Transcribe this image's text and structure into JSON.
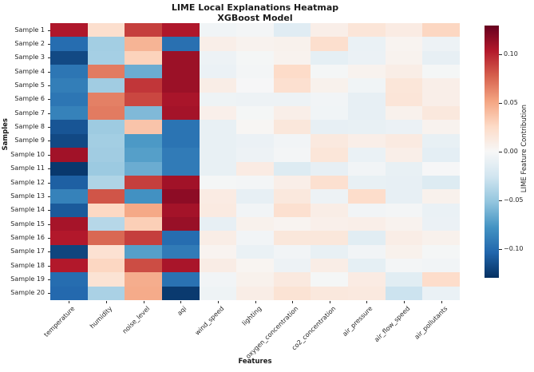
{
  "title": "LIME Local Explanations Heatmap",
  "subtitle": "XGBoost Model",
  "chart_data": {
    "type": "heatmap",
    "title": "LIME Local Explanations Heatmap",
    "subtitle": "XGBoost Model",
    "xlabel": "Features",
    "ylabel": "Samples",
    "grid": false,
    "colorbar_label": "LIME Feature Contribution",
    "colorbar_ticks": [
      {
        "value": 0.1,
        "label": "0.10"
      },
      {
        "value": 0.05,
        "label": "0.05"
      },
      {
        "value": 0.0,
        "label": "0.00"
      },
      {
        "value": -0.05,
        "label": "−0.05"
      },
      {
        "value": -0.1,
        "label": "−0.10"
      }
    ],
    "vmin": -0.13,
    "vmax": 0.13,
    "colormap_name": "RdBu_r",
    "colormap_stops": [
      "#053061",
      "#2166ac",
      "#4393c3",
      "#92c5de",
      "#d1e5f0",
      "#f7f7f7",
      "#fddbc7",
      "#f4a582",
      "#d6604d",
      "#b2182b",
      "#67001f"
    ],
    "categories": [
      "temperature",
      "humidity",
      "noise_level",
      "aqi",
      "wind_speed",
      "lighting",
      "oxygen_concentration",
      "co2_concentration",
      "air_pressure",
      "air_flow_speed",
      "air_pollutants"
    ],
    "rows": [
      "Sample 1",
      "Sample 2",
      "Sample 3",
      "Sample 4",
      "Sample 5",
      "Sample 6",
      "Sample 7",
      "Sample 8",
      "Sample 9",
      "Sample 10",
      "Sample 11",
      "Sample 12",
      "Sample 13",
      "Sample 14",
      "Sample 15",
      "Sample 16",
      "Sample 17",
      "Sample 18",
      "Sample 19",
      "Sample 20"
    ],
    "values": [
      [
        0.105,
        0.022,
        0.09,
        0.105,
        -0.005,
        -0.003,
        -0.016,
        0.008,
        0.017,
        0.011,
        0.028
      ],
      [
        -0.1,
        -0.045,
        0.045,
        -0.098,
        0.008,
        0.005,
        0.006,
        0.022,
        -0.009,
        0.004,
        -0.007
      ],
      [
        -0.118,
        -0.044,
        0.03,
        0.112,
        -0.007,
        -0.002,
        0.005,
        -0.012,
        -0.008,
        0.005,
        -0.011
      ],
      [
        -0.095,
        0.068,
        -0.065,
        0.112,
        -0.008,
        -0.003,
        0.025,
        -0.002,
        0.005,
        0.009,
        -0.002
      ],
      [
        -0.09,
        -0.046,
        0.093,
        0.112,
        0.009,
        -0.001,
        0.021,
        0.006,
        -0.005,
        0.016,
        0.008
      ],
      [
        -0.095,
        0.066,
        0.087,
        0.107,
        -0.006,
        -0.007,
        -0.007,
        -0.004,
        -0.011,
        0.017,
        0.008
      ],
      [
        -0.088,
        0.068,
        -0.058,
        0.109,
        0.007,
        -0.002,
        0.008,
        -0.005,
        -0.011,
        0.006,
        0.014
      ],
      [
        -0.112,
        -0.047,
        0.037,
        -0.096,
        -0.01,
        0.002,
        0.015,
        -0.011,
        -0.01,
        -0.008,
        0.005
      ],
      [
        -0.118,
        -0.045,
        -0.075,
        -0.096,
        -0.01,
        -0.008,
        -0.004,
        0.013,
        0.008,
        0.012,
        -0.01
      ],
      [
        0.11,
        -0.046,
        -0.072,
        -0.092,
        -0.01,
        -0.007,
        -0.003,
        0.016,
        -0.009,
        0.008,
        -0.013
      ],
      [
        -0.126,
        -0.048,
        -0.065,
        -0.092,
        -0.01,
        0.011,
        -0.018,
        -0.011,
        -0.004,
        -0.01,
        -0.001
      ],
      [
        -0.107,
        -0.04,
        0.09,
        0.11,
        -0.002,
        -0.003,
        0.008,
        0.021,
        -0.01,
        -0.011,
        -0.018
      ],
      [
        -0.088,
        0.082,
        -0.079,
        0.117,
        0.011,
        -0.011,
        0.014,
        -0.007,
        0.024,
        -0.011,
        0.006
      ],
      [
        -0.11,
        0.027,
        0.05,
        0.109,
        0.012,
        -0.004,
        0.021,
        0.009,
        -0.004,
        -0.003,
        -0.009
      ],
      [
        0.108,
        -0.037,
        0.032,
        0.113,
        -0.011,
        0.006,
        0.004,
        0.007,
        0.008,
        0.005,
        -0.008
      ],
      [
        0.104,
        0.075,
        0.09,
        -0.1,
        0.009,
        -0.004,
        0.015,
        0.015,
        -0.015,
        0.009,
        0.006
      ],
      [
        -0.12,
        0.02,
        -0.072,
        -0.092,
        0.004,
        -0.009,
        -0.004,
        -0.01,
        -0.004,
        0.006,
        -0.002
      ],
      [
        0.104,
        0.028,
        0.085,
        0.107,
        0.01,
        0.003,
        -0.007,
        0.009,
        -0.012,
        -0.003,
        -0.004
      ],
      [
        -0.1,
        0.019,
        0.048,
        -0.097,
        -0.004,
        0.006,
        0.013,
        -0.002,
        0.011,
        -0.015,
        0.024
      ],
      [
        -0.102,
        -0.042,
        0.049,
        -0.125,
        -0.006,
        0.009,
        0.019,
        0.014,
        0.013,
        -0.028,
        -0.009
      ]
    ]
  }
}
